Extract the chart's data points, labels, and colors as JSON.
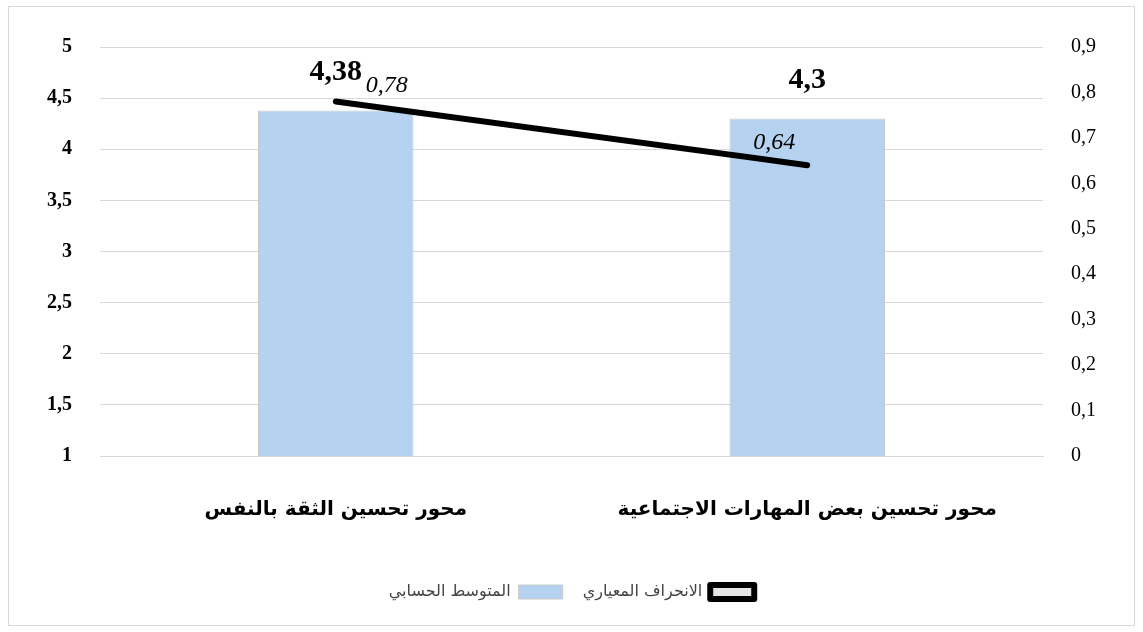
{
  "chart_data": {
    "type": "bar",
    "categories": [
      "محور تحسين الثقة بالنفس",
      "محور تحسين بعض المهارات الاجتماعية"
    ],
    "series": [
      {
        "name": "المتوسط الحسابي",
        "color": "#b5d2f0",
        "values": [
          4.38,
          4.3
        ],
        "value_labels": [
          "4,38",
          "4,3"
        ]
      },
      {
        "name": "الانحراف المعياري",
        "type": "line",
        "axis": "y2",
        "color": "#000000",
        "values": [
          0.78,
          0.64
        ],
        "value_labels": [
          "0,78",
          "0,64"
        ]
      }
    ],
    "ylim": [
      1,
      5
    ],
    "yticks": [
      1,
      {
        "value": 1.5,
        "label": "1,5"
      },
      2,
      {
        "value": 2.5,
        "label": "2,5"
      },
      3,
      {
        "value": 3.5,
        "label": "3,5"
      },
      4,
      {
        "value": 4.5,
        "label": "4,5"
      },
      5
    ],
    "y2lim": [
      0,
      0.9
    ],
    "y2ticks": [
      0,
      {
        "value": 0.1,
        "label": "0,1"
      },
      {
        "value": 0.2,
        "label": "0,2"
      },
      {
        "value": 0.3,
        "label": "0,3"
      },
      {
        "value": 0.4,
        "label": "0,4"
      },
      {
        "value": 0.5,
        "label": "0,5"
      },
      {
        "value": 0.6,
        "label": "0,6"
      },
      {
        "value": 0.7,
        "label": "0,7"
      },
      {
        "value": 0.8,
        "label": "0,8"
      },
      {
        "value": 0.9,
        "label": "0,9"
      }
    ],
    "grid": "y",
    "legend": "bottom",
    "marker": "none",
    "line_style": "solid"
  }
}
